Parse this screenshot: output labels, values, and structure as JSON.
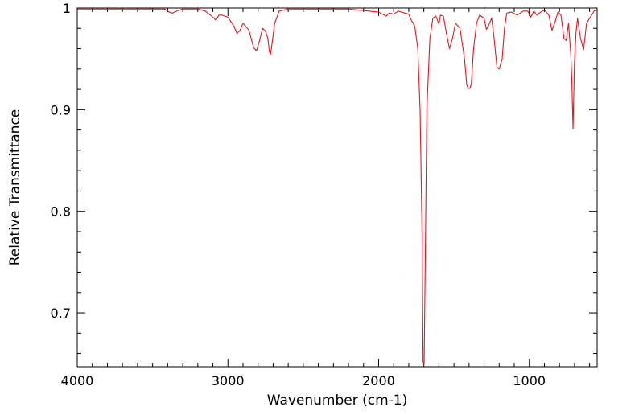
{
  "chart_data": {
    "type": "line",
    "title": "",
    "xlabel": "Wavenumber (cm-1)",
    "ylabel": "Relative Transmittance",
    "xlim": [
      4000,
      550
    ],
    "ylim": [
      0.647,
      1.0
    ],
    "x_reversed": true,
    "grid": false,
    "legend": "none",
    "x_ticks": [
      4000,
      3000,
      2000,
      1000
    ],
    "x_tick_labels": [
      "4000",
      "3000",
      "2000",
      "1000"
    ],
    "y_ticks": [
      0.7,
      0.8,
      0.9,
      1.0
    ],
    "y_tick_labels": [
      "0.7",
      "0.8",
      "0.9",
      "1"
    ],
    "series": [
      {
        "color": "#e8171e",
        "x": [
          4000,
          3420,
          3390,
          3370,
          3340,
          3300,
          3200,
          3150,
          3100,
          3080,
          3060,
          3040,
          3000,
          2960,
          2940,
          2920,
          2900,
          2860,
          2830,
          2810,
          2790,
          2770,
          2750,
          2735,
          2725,
          2718,
          2710,
          2690,
          2660,
          2600,
          2400,
          2200,
          2000,
          1950,
          1930,
          1900,
          1870,
          1850,
          1800,
          1790,
          1760,
          1740,
          1725,
          1712,
          1705,
          1698,
          1690,
          1680,
          1660,
          1640,
          1620,
          1600,
          1590,
          1570,
          1550,
          1530,
          1510,
          1490,
          1460,
          1430,
          1415,
          1405,
          1395,
          1385,
          1370,
          1350,
          1330,
          1300,
          1285,
          1270,
          1250,
          1235,
          1215,
          1200,
          1180,
          1165,
          1150,
          1120,
          1080,
          1040,
          1010,
          990,
          970,
          950,
          925,
          900,
          870,
          850,
          830,
          810,
          790,
          770,
          755,
          740,
          725,
          718,
          710,
          700,
          690,
          680,
          660,
          640,
          620,
          600,
          570,
          550
        ],
        "y": [
          0.999,
          0.999,
          0.996,
          0.995,
          0.997,
          0.999,
          0.999,
          0.997,
          0.991,
          0.988,
          0.993,
          0.993,
          0.991,
          0.982,
          0.975,
          0.978,
          0.985,
          0.978,
          0.961,
          0.958,
          0.968,
          0.98,
          0.977,
          0.97,
          0.957,
          0.954,
          0.962,
          0.985,
          0.997,
          0.999,
          0.999,
          0.999,
          0.996,
          0.992,
          0.995,
          0.994,
          0.997,
          0.996,
          0.994,
          0.99,
          0.982,
          0.96,
          0.9,
          0.78,
          0.652,
          0.65,
          0.76,
          0.9,
          0.97,
          0.99,
          0.992,
          0.984,
          0.993,
          0.992,
          0.975,
          0.96,
          0.97,
          0.985,
          0.98,
          0.95,
          0.924,
          0.921,
          0.921,
          0.925,
          0.96,
          0.985,
          0.993,
          0.99,
          0.979,
          0.983,
          0.99,
          0.972,
          0.942,
          0.94,
          0.95,
          0.98,
          0.995,
          0.996,
          0.993,
          0.997,
          0.997,
          0.991,
          0.997,
          0.993,
          0.996,
          0.998,
          0.993,
          0.978,
          0.986,
          0.996,
          0.993,
          0.97,
          0.968,
          0.985,
          0.955,
          0.93,
          0.881,
          0.948,
          0.976,
          0.99,
          0.97,
          0.959,
          0.985,
          0.99,
          0.997,
          0.998
        ]
      }
    ]
  }
}
